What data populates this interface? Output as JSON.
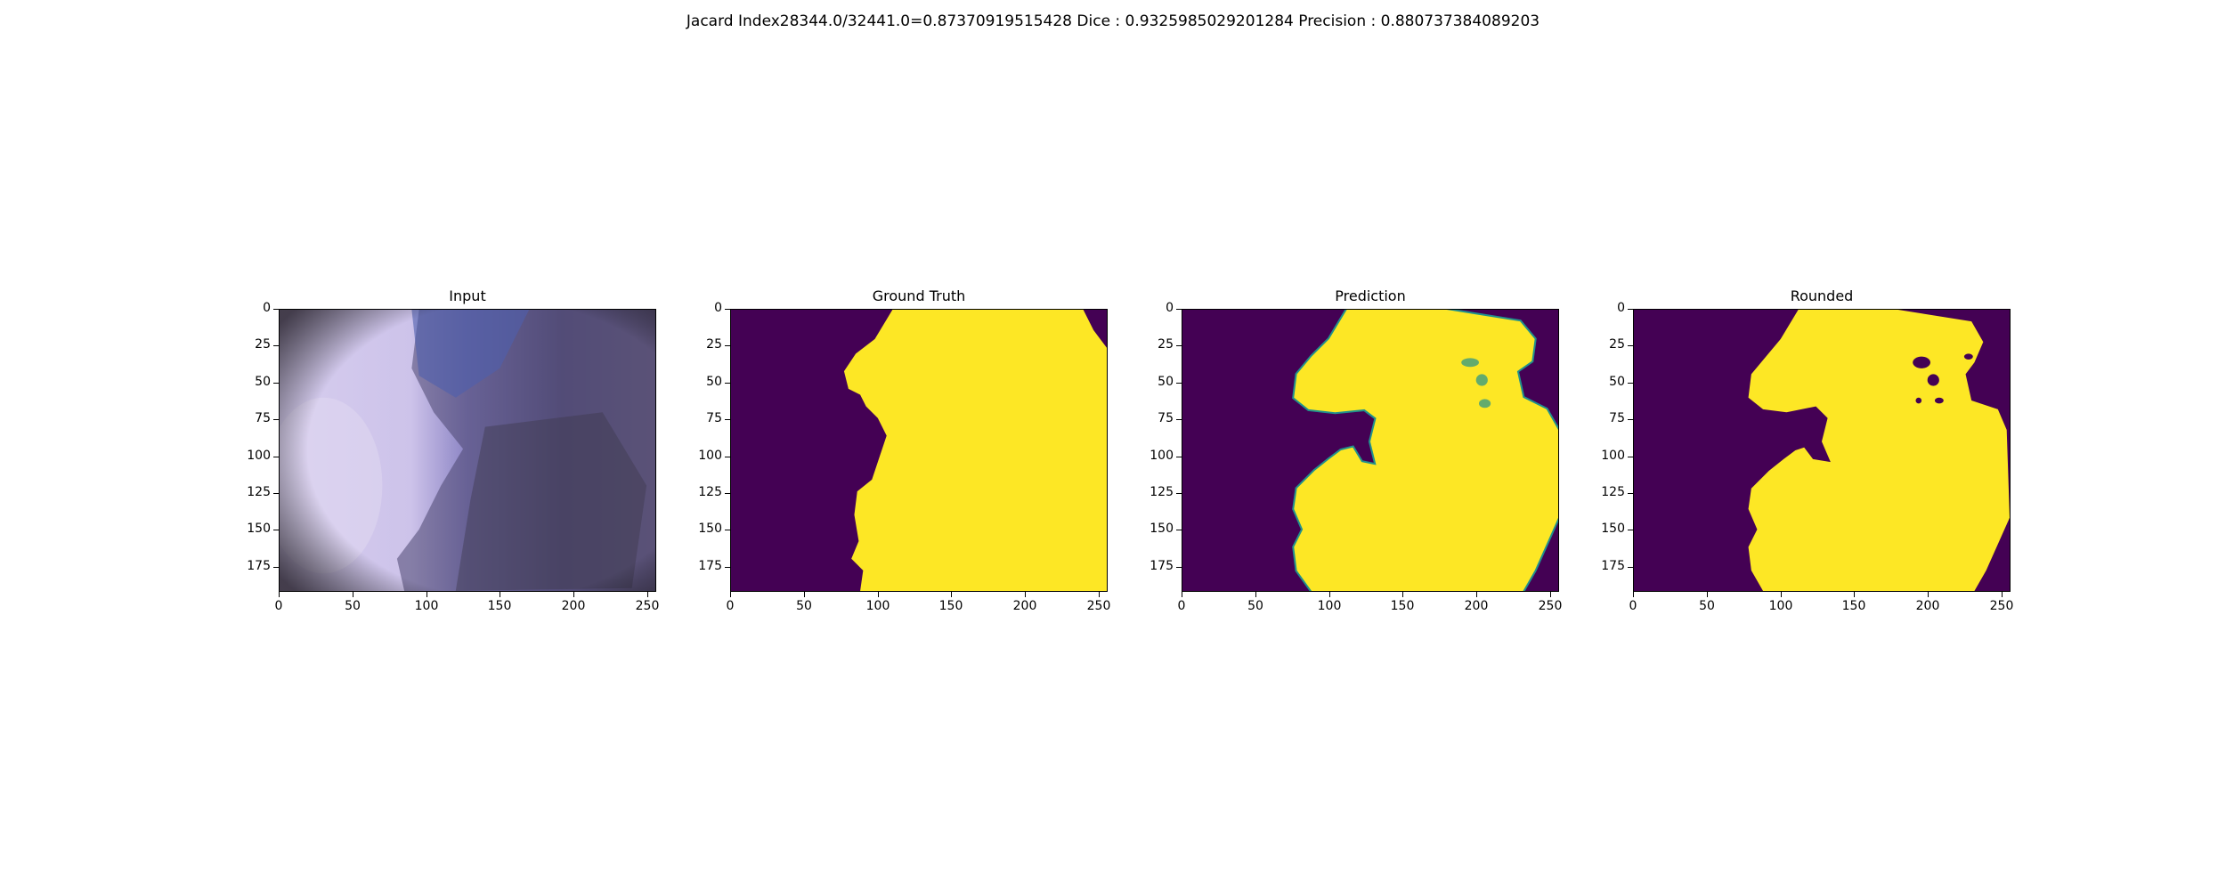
{
  "figure": {
    "suptitle": "Jacard Index28344.0/32441.0=0.87370919515428 Dice : 0.9325985029201284 Precision : 0.880737384089203"
  },
  "panels": [
    {
      "title": "Input"
    },
    {
      "title": "Ground Truth"
    },
    {
      "title": "Prediction"
    },
    {
      "title": "Rounded"
    }
  ],
  "axes": {
    "xticks": [
      "0",
      "50",
      "100",
      "150",
      "200",
      "250"
    ],
    "yticks": [
      "0",
      "25",
      "50",
      "75",
      "100",
      "125",
      "150",
      "175"
    ],
    "xlim": [
      0,
      256
    ],
    "ylim": [
      192,
      0
    ]
  },
  "colors": {
    "background_mask": "#440154",
    "foreground_mask": "#fde725",
    "edge_mask": "#21918c"
  }
}
